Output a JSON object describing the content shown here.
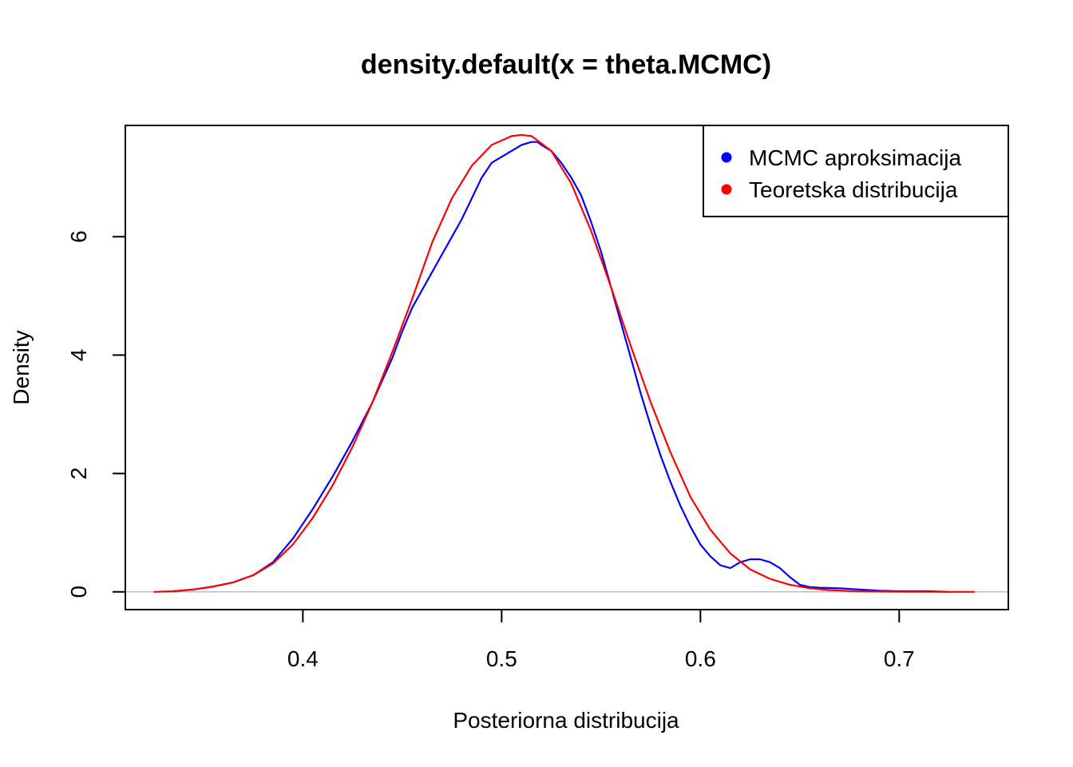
{
  "chart_data": {
    "type": "line",
    "title": "density.default(x = theta.MCMC)",
    "xlabel": "Posteriorna distribucija",
    "ylabel": "Density",
    "xlim": [
      0.3107,
      0.7549
    ],
    "ylim": [
      -0.3,
      7.88
    ],
    "x_ticks": [
      "0.4",
      "0.5",
      "0.6",
      "0.7"
    ],
    "y_ticks": [
      "0",
      "2",
      "4",
      "6"
    ],
    "legend_position": "top-right",
    "zero_line": true,
    "series": [
      {
        "name": "MCMC aproksimacija",
        "color": "#0000ff",
        "x": [
          0.335,
          0.345,
          0.355,
          0.365,
          0.375,
          0.385,
          0.395,
          0.405,
          0.415,
          0.425,
          0.435,
          0.445,
          0.45,
          0.455,
          0.46,
          0.465,
          0.47,
          0.475,
          0.48,
          0.485,
          0.49,
          0.495,
          0.5,
          0.505,
          0.51,
          0.515,
          0.518,
          0.52,
          0.525,
          0.53,
          0.535,
          0.54,
          0.545,
          0.55,
          0.555,
          0.56,
          0.565,
          0.57,
          0.575,
          0.58,
          0.585,
          0.59,
          0.595,
          0.6,
          0.605,
          0.61,
          0.615,
          0.62,
          0.625,
          0.63,
          0.635,
          0.64,
          0.645,
          0.65,
          0.655,
          0.66,
          0.67,
          0.68,
          0.69,
          0.7,
          0.715,
          0.725
        ],
        "y": [
          0.01,
          0.04,
          0.09,
          0.16,
          0.28,
          0.5,
          0.9,
          1.4,
          1.95,
          2.55,
          3.2,
          3.95,
          4.4,
          4.8,
          5.1,
          5.4,
          5.7,
          6.0,
          6.3,
          6.65,
          7.0,
          7.25,
          7.35,
          7.45,
          7.55,
          7.6,
          7.6,
          7.55,
          7.45,
          7.25,
          7.0,
          6.7,
          6.25,
          5.75,
          5.15,
          4.55,
          3.95,
          3.35,
          2.8,
          2.3,
          1.85,
          1.45,
          1.1,
          0.8,
          0.6,
          0.45,
          0.4,
          0.5,
          0.55,
          0.55,
          0.5,
          0.4,
          0.25,
          0.12,
          0.08,
          0.07,
          0.06,
          0.04,
          0.02,
          0.01,
          0.01,
          0.0
        ]
      },
      {
        "name": "Teoretska distribucija",
        "color": "#ff0000",
        "x": [
          0.325,
          0.335,
          0.345,
          0.355,
          0.365,
          0.375,
          0.385,
          0.395,
          0.405,
          0.415,
          0.425,
          0.435,
          0.445,
          0.455,
          0.465,
          0.475,
          0.485,
          0.495,
          0.505,
          0.51,
          0.515,
          0.525,
          0.535,
          0.545,
          0.555,
          0.565,
          0.575,
          0.585,
          0.595,
          0.605,
          0.615,
          0.625,
          0.635,
          0.645,
          0.655,
          0.665,
          0.675,
          0.685,
          0.695,
          0.705,
          0.715,
          0.725,
          0.738
        ],
        "y": [
          0.0,
          0.01,
          0.04,
          0.09,
          0.16,
          0.28,
          0.48,
          0.8,
          1.25,
          1.8,
          2.45,
          3.2,
          4.05,
          4.95,
          5.9,
          6.65,
          7.2,
          7.55,
          7.7,
          7.72,
          7.7,
          7.45,
          6.9,
          6.1,
          5.15,
          4.15,
          3.2,
          2.35,
          1.6,
          1.05,
          0.65,
          0.38,
          0.22,
          0.12,
          0.06,
          0.03,
          0.015,
          0.008,
          0.004,
          0.002,
          0.001,
          0.0,
          0.0
        ]
      }
    ]
  }
}
